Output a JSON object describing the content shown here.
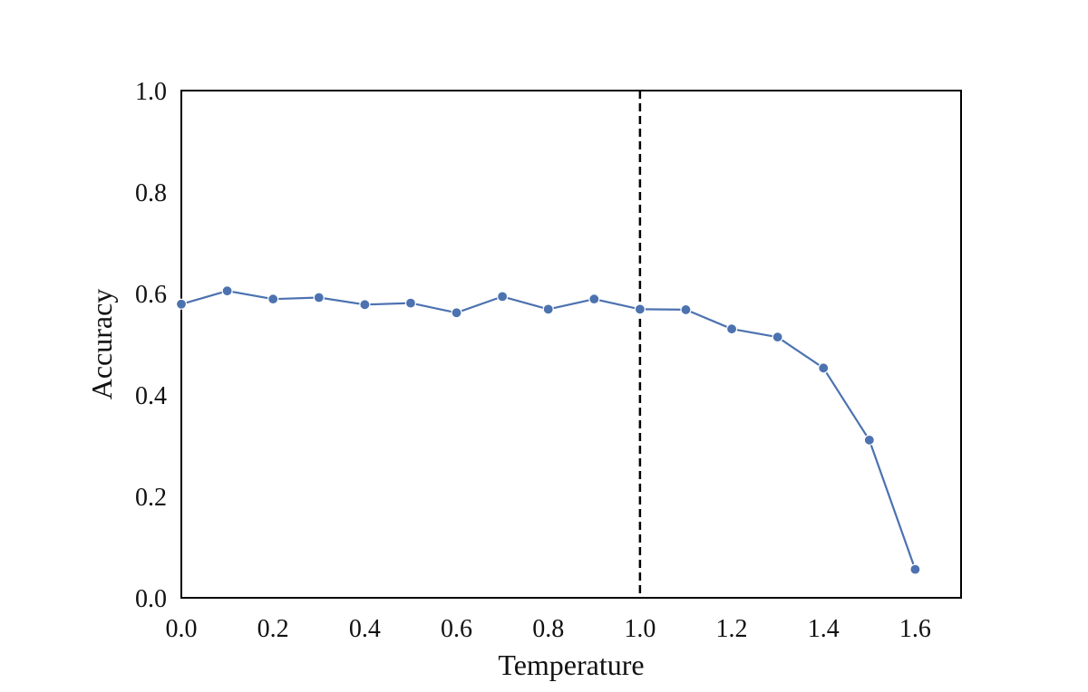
{
  "chart_data": {
    "type": "line",
    "title": "",
    "xlabel": "Temperature",
    "ylabel": "Accuracy",
    "xlim": [
      0.0,
      1.7
    ],
    "ylim": [
      0.0,
      1.0
    ],
    "xticks": [
      "0.0",
      "0.2",
      "0.4",
      "0.6",
      "0.8",
      "1.0",
      "1.2",
      "1.4",
      "1.6"
    ],
    "yticks": [
      "0.0",
      "0.2",
      "0.4",
      "0.6",
      "0.8",
      "1.0"
    ],
    "grid": false,
    "reference_line": {
      "axis": "x",
      "value": 1.0,
      "style": "dashed",
      "color": "#000000"
    },
    "series": [
      {
        "color": "#4c72b0",
        "marker": "circle",
        "x": [
          0.0,
          0.1,
          0.2,
          0.3,
          0.4,
          0.5,
          0.6,
          0.7,
          0.8,
          0.9,
          1.0,
          1.1,
          1.2,
          1.3,
          1.4,
          1.5,
          1.6
        ],
        "y": [
          0.579,
          0.605,
          0.589,
          0.592,
          0.578,
          0.581,
          0.562,
          0.594,
          0.569,
          0.589,
          0.569,
          0.568,
          0.53,
          0.514,
          0.453,
          0.311,
          0.056
        ]
      }
    ]
  }
}
